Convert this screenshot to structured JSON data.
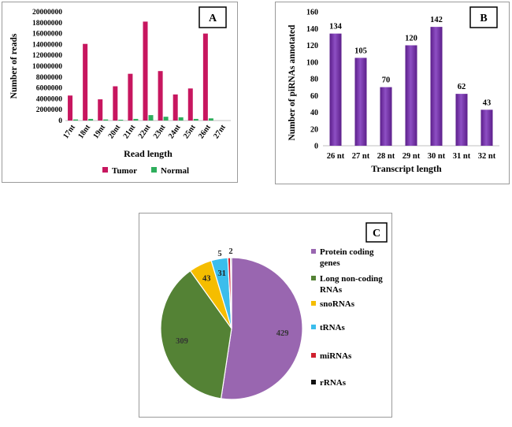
{
  "chart_data": [
    {
      "panel": "A",
      "type": "bar",
      "categories": [
        "17nt",
        "18nt",
        "19nt",
        "20nt",
        "21nt",
        "22nt",
        "23nt",
        "24nt",
        "25nt",
        "26nt",
        "27nt"
      ],
      "series": [
        {
          "name": "Tumor",
          "color": "#C7165F",
          "values": [
            4600000,
            14100000,
            3900000,
            6300000,
            8600000,
            18200000,
            9100000,
            4800000,
            5900000,
            16000000,
            0
          ]
        },
        {
          "name": "Normal",
          "color": "#2EAE5C",
          "values": [
            200000,
            300000,
            200000,
            150000,
            300000,
            1000000,
            700000,
            600000,
            300000,
            400000,
            0
          ]
        }
      ],
      "yticks": [
        "0",
        "2000000",
        "4000000",
        "6000000",
        "8000000",
        "10000000",
        "12000000",
        "14000000",
        "16000000",
        "18000000",
        "20000000"
      ],
      "ylim": [
        0,
        20000000
      ],
      "xlabel": "Read length",
      "ylabel": "Number of reads",
      "legend": "bottom"
    },
    {
      "panel": "B",
      "type": "bar",
      "categories": [
        "26 nt",
        "27 nt",
        "28 nt",
        "29 nt",
        "30 nt",
        "31 nt",
        "32 nt"
      ],
      "values": [
        134,
        105,
        70,
        120,
        142,
        62,
        43
      ],
      "data_labels": [
        "134",
        "105",
        "70",
        "120",
        "142",
        "62",
        "43"
      ],
      "yticks": [
        "0",
        "20",
        "40",
        "60",
        "80",
        "100",
        "120",
        "140",
        "160"
      ],
      "ylim": [
        0,
        160
      ],
      "xlabel": "Transcript length",
      "ylabel": "Number of piRNAs annotated",
      "color": "#7030A0"
    },
    {
      "panel": "C",
      "type": "pie",
      "slices": [
        {
          "label": "Protein coding genes",
          "value": 429,
          "value_label": "429",
          "color": "#9966B0"
        },
        {
          "label": "Long non-coding RNAs",
          "value": 309,
          "value_label": "309",
          "color": "#548235"
        },
        {
          "label": "snoRNAs",
          "value": 43,
          "value_label": "43",
          "color": "#F5BD00"
        },
        {
          "label": "tRNAs",
          "value": 31,
          "value_label": "31",
          "color": "#3BBDEC"
        },
        {
          "label": "miRNAs",
          "value": 5,
          "value_label": "5",
          "color": "#D0202E"
        },
        {
          "label": "rRNAs",
          "value": 2,
          "value_label": "2",
          "color": "#111111"
        }
      ],
      "legend_lines": [
        [
          "Protein coding",
          "genes"
        ],
        [
          "Long non-coding",
          "RNAs"
        ],
        [
          "snoRNAs"
        ],
        [
          "tRNAs"
        ],
        [
          "miRNAs"
        ],
        [
          "rRNAs"
        ]
      ],
      "legend": "right"
    }
  ],
  "panels": {
    "a": "A",
    "b": "B",
    "c": "C"
  }
}
